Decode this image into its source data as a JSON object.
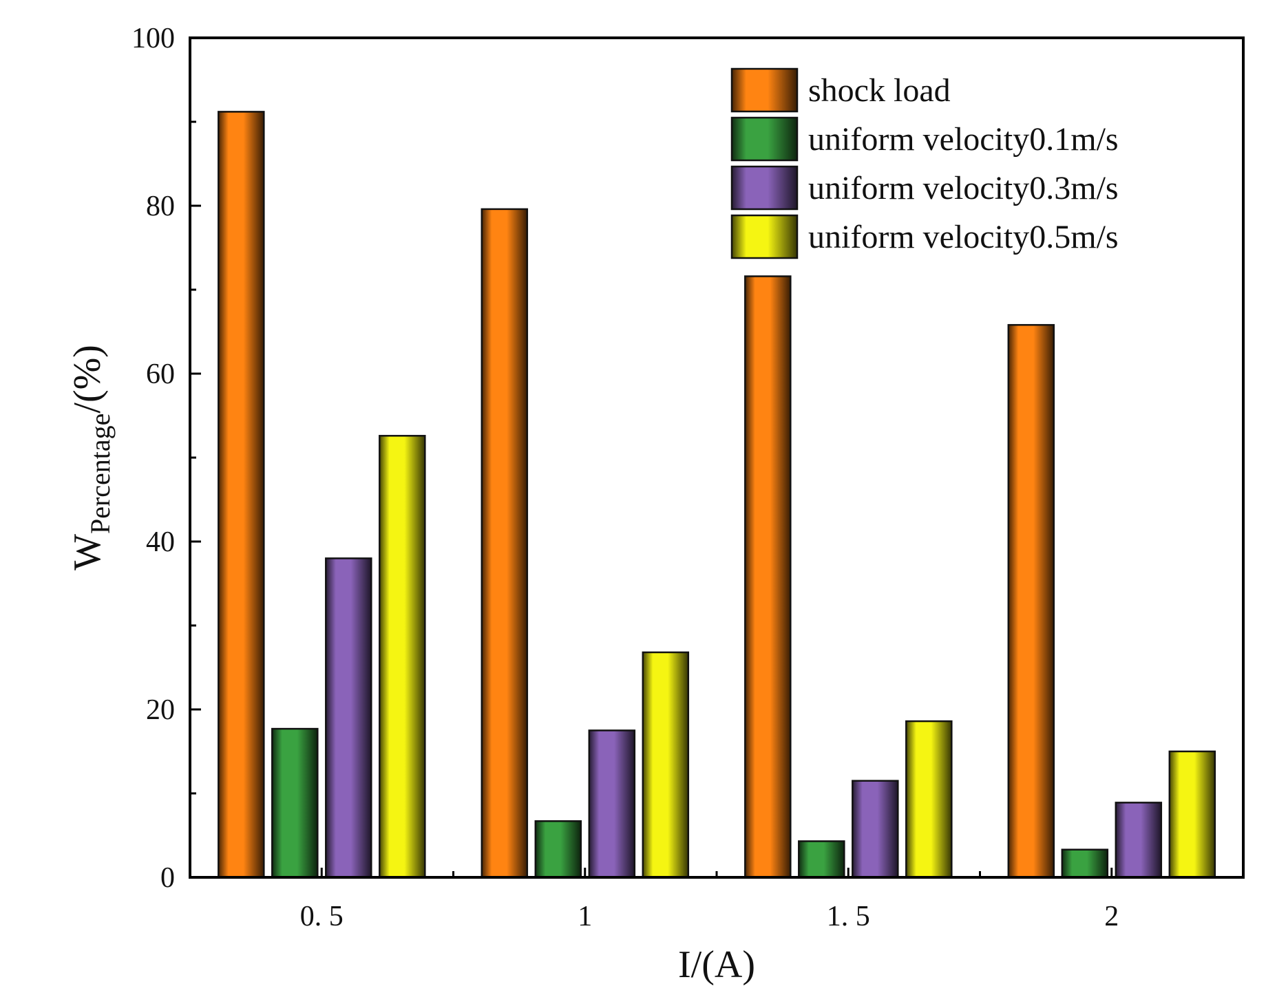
{
  "chart_data": {
    "type": "bar",
    "title": "",
    "xlabel": "I/(A)",
    "ylabel": {
      "main": "W",
      "subscript": "Percentage",
      "suffix": "/(%)"
    },
    "categories": [
      "0. 5",
      "1",
      "1. 5",
      "2"
    ],
    "ylim": [
      0,
      100
    ],
    "yticks": [
      0,
      20,
      40,
      60,
      80,
      100
    ],
    "grid": false,
    "legend_position": "top-right",
    "series": [
      {
        "name": "shock load",
        "color": "#ff8412",
        "values": [
          91.2,
          79.6,
          71.6,
          65.8
        ]
      },
      {
        "name": "uniform velocity0.1m/s",
        "color": "#3aa241",
        "values": [
          17.7,
          6.7,
          4.3,
          3.3
        ]
      },
      {
        "name": "uniform velocity0.3m/s",
        "color": "#8a63b9",
        "values": [
          38.0,
          17.5,
          11.5,
          8.9
        ]
      },
      {
        "name": "uniform velocity0.5m/s",
        "color": "#f5f512",
        "values": [
          52.6,
          26.8,
          18.6,
          15.0
        ]
      }
    ]
  }
}
